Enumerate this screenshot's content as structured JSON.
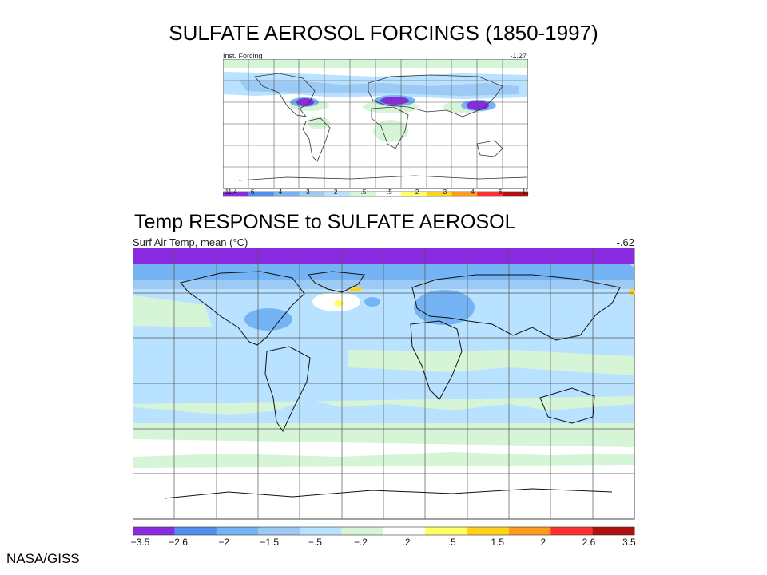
{
  "slide": {
    "title_top": "SULFATE AEROSOL FORCINGS (1850-1997)",
    "title_bottom": "Temp RESPONSE to SULFATE AEROSOL",
    "credit": "NASA/GISS"
  },
  "map_forcing": {
    "label_left": "Inst. Forcing",
    "label_right": "-1.27",
    "legend": {
      "colors": [
        "#8a2be2",
        "#4e8ff0",
        "#74b4f5",
        "#9ccaf5",
        "#b8e2ff",
        "#d6f5d6",
        "#ffffff",
        "#ffff66",
        "#ffd21a",
        "#ff9a1a",
        "#ff3030",
        "#b01010"
      ],
      "ticks": [
        "−11.4",
        "−6",
        "−4",
        "−3",
        "−2",
        "−.5",
        ".5",
        "2",
        "3",
        "4",
        "6",
        "11"
      ]
    }
  },
  "map_temp": {
    "label_left": "Surf Air Temp, mean (°C)",
    "label_right": "-.62",
    "legend": {
      "colors": [
        "#8a2be2",
        "#4e8ff0",
        "#74b4f5",
        "#9ccaf5",
        "#b8e2ff",
        "#d6f5d6",
        "#ffffff",
        "#ffff66",
        "#ffd21a",
        "#ff9a1a",
        "#ff3030",
        "#b01010"
      ],
      "ticks": [
        "−3.5",
        "−2.6",
        "−2",
        "−1.5",
        "−.5",
        "−.2",
        ".2",
        ".5",
        "1.5",
        "2",
        "2.6",
        "3.5"
      ]
    }
  }
}
